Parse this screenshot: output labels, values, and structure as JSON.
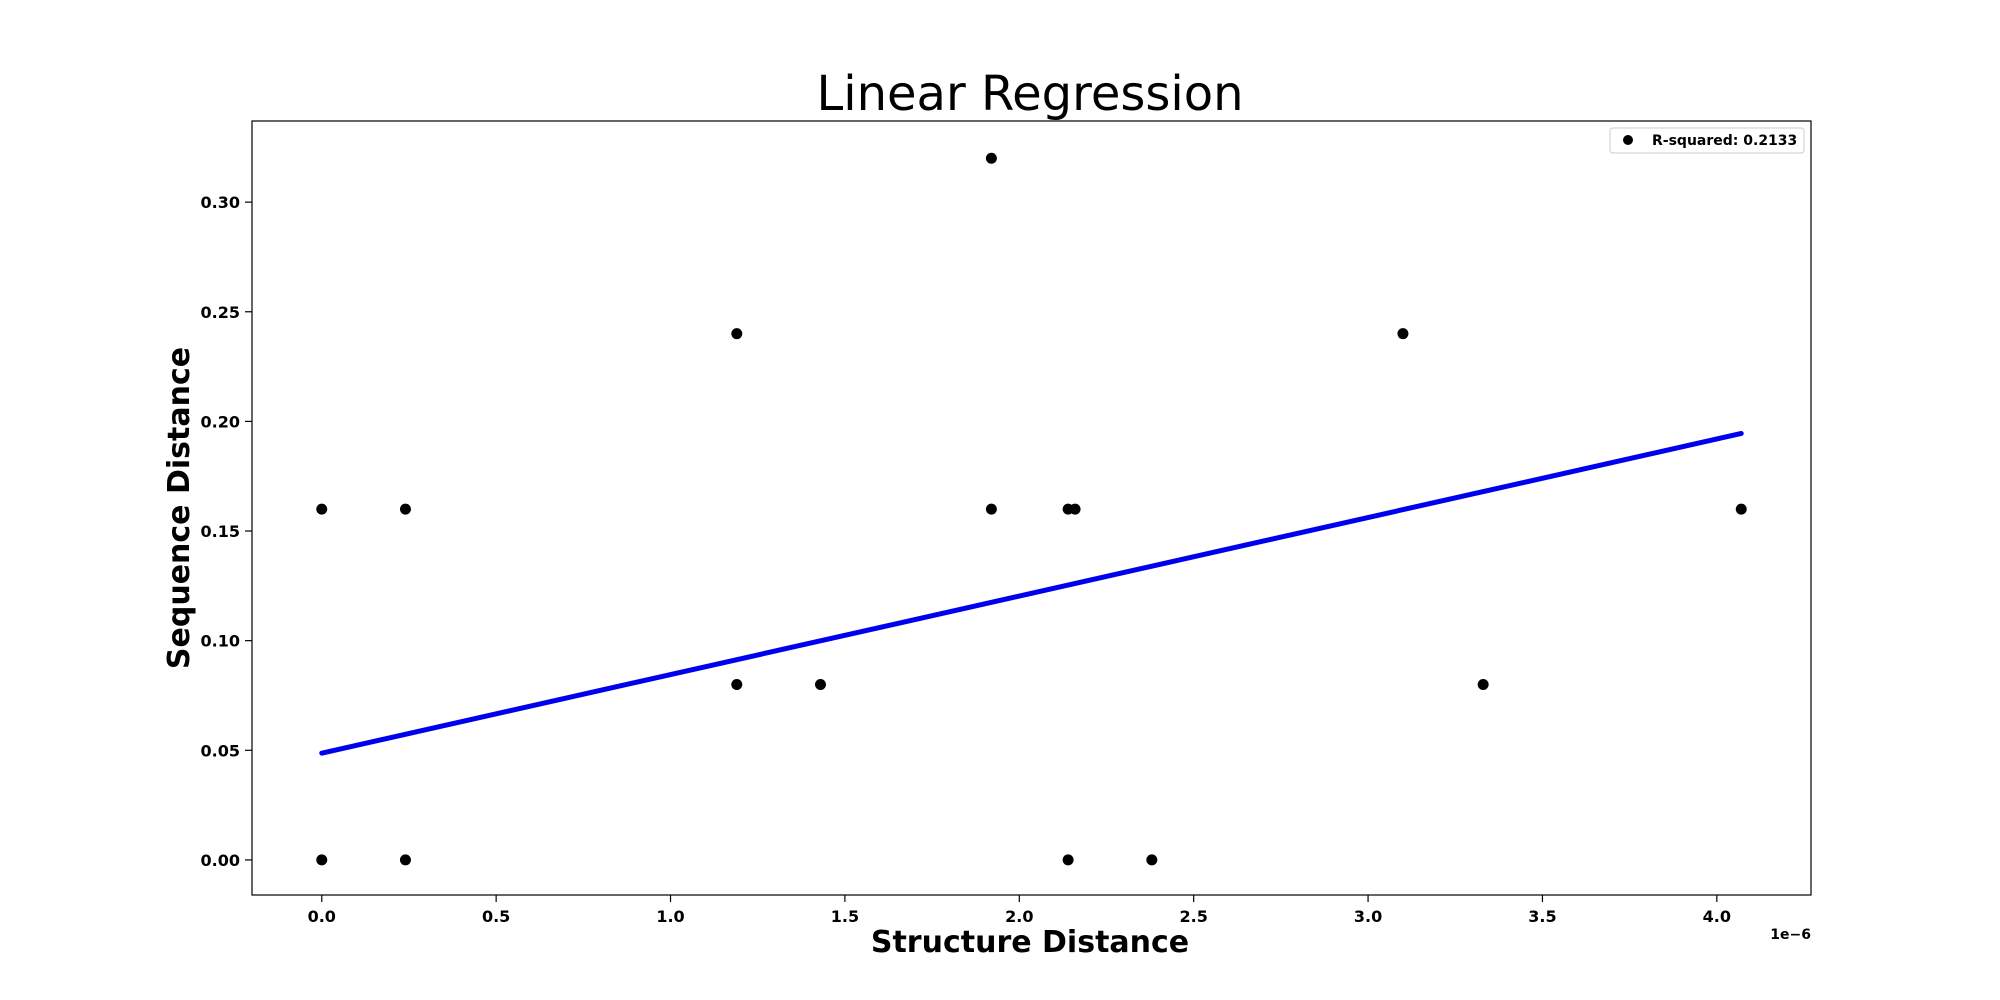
{
  "chart_data": {
    "type": "scatter",
    "title": "Linear Regression",
    "xlabel": "Structure Distance",
    "ylabel": "Sequence Distance",
    "x_offset_label": "1e−6",
    "x_scale": 1e-06,
    "xlim": [
      -0.2,
      4.27
    ],
    "ylim": [
      -0.016,
      0.337
    ],
    "x_ticks": [
      0.0,
      0.5,
      1.0,
      1.5,
      2.0,
      2.5,
      3.0,
      3.5,
      4.0
    ],
    "x_tick_labels": [
      "0.0",
      "0.5",
      "1.0",
      "1.5",
      "2.0",
      "2.5",
      "3.0",
      "3.5",
      "4.0"
    ],
    "y_ticks": [
      0.0,
      0.05,
      0.1,
      0.15,
      0.2,
      0.25,
      0.3
    ],
    "y_tick_labels": [
      "0.00",
      "0.05",
      "0.10",
      "0.15",
      "0.20",
      "0.25",
      "0.30"
    ],
    "grid": false,
    "legend": {
      "placement": "top-right",
      "label": "R-squared: 0.2133"
    },
    "points": [
      {
        "x": 0.0,
        "y": 0.16
      },
      {
        "x": 0.0,
        "y": 0.0
      },
      {
        "x": 0.24,
        "y": 0.16
      },
      {
        "x": 0.24,
        "y": 0.0
      },
      {
        "x": 1.19,
        "y": 0.24
      },
      {
        "x": 1.19,
        "y": 0.08
      },
      {
        "x": 1.43,
        "y": 0.08
      },
      {
        "x": 1.92,
        "y": 0.32
      },
      {
        "x": 1.92,
        "y": 0.16
      },
      {
        "x": 2.14,
        "y": 0.16
      },
      {
        "x": 2.16,
        "y": 0.16
      },
      {
        "x": 2.14,
        "y": 0.0
      },
      {
        "x": 2.38,
        "y": 0.0
      },
      {
        "x": 3.1,
        "y": 0.24
      },
      {
        "x": 3.33,
        "y": 0.08
      },
      {
        "x": 4.07,
        "y": 0.16
      }
    ],
    "regression_line": {
      "x": [
        0.0,
        4.07
      ],
      "y": [
        0.0487,
        0.1945
      ],
      "color": "#0000ee"
    },
    "point_color": "#000000"
  }
}
